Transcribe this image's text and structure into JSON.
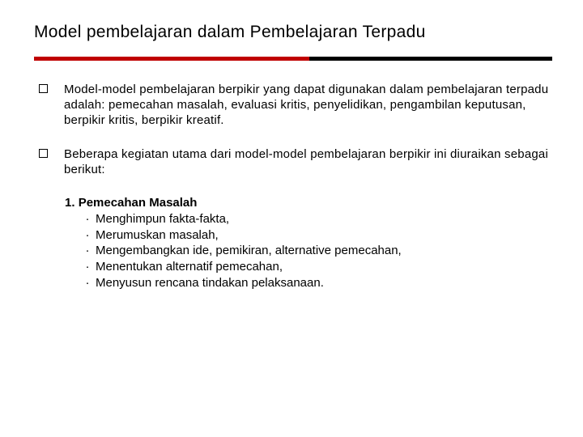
{
  "title": "Model pembelajaran dalam Pembelajaran Terpadu",
  "rule": {
    "red_start": 0,
    "red_width": 340,
    "black_start": 340,
    "black_width": 300,
    "color_red": "#c00000",
    "color_black": "#000000"
  },
  "bullets": [
    "Model-model pembelajaran berpikir yang dapat digunakan dalam pembelajaran terpadu adalah: pemecahan masalah, evaluasi kritis, penyelidikan, pengambilan keputusan, berpikir kritis, berpikir kreatif.",
    "Beberapa kegiatan utama dari model-model pembelajaran berpikir ini diuraikan sebagai berikut:"
  ],
  "section": {
    "number": "1.",
    "heading": "Pemecahan Masalah",
    "items": [
      "Menghimpun fakta-fakta,",
      "Merumuskan masalah,",
      "Mengembangkan ide, pemikiran, alternative pemecahan,",
      "Menentukan alternatif pemecahan,",
      "Menyusun rencana tindakan pelaksanaan."
    ]
  },
  "colors": {
    "background": "#ffffff",
    "text": "#000000"
  },
  "typography": {
    "title_fontsize": 21,
    "body_fontsize": 15,
    "font_family": "Verdana"
  }
}
